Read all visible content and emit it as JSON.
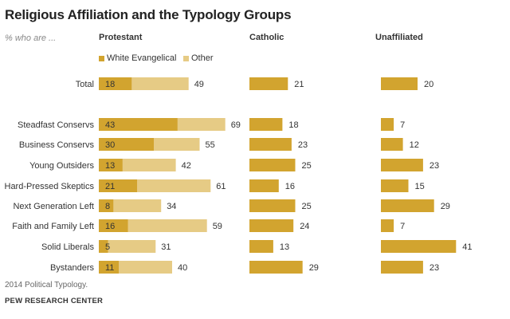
{
  "chart_data": {
    "type": "bar",
    "title": "Religious Affiliation and the Typology Groups",
    "subtitle": "% who are ...",
    "categories": [
      "Total",
      "Steadfast Conservs",
      "Business Conservs",
      "Young Outsiders",
      "Hard-Pressed Skeptics",
      "Next Generation Left",
      "Faith and Family Left",
      "Solid Liberals",
      "Bystanders"
    ],
    "panels": {
      "protestant": {
        "label": "Protestant",
        "stacked": true,
        "series": [
          {
            "name": "White Evangelical",
            "values": [
              18,
              43,
              30,
              13,
              21,
              8,
              16,
              5,
              11
            ]
          },
          {
            "name": "Other",
            "values": [
              31,
              26,
              25,
              29,
              40,
              26,
              43,
              26,
              29
            ]
          }
        ],
        "totals": [
          49,
          69,
          55,
          42,
          61,
          34,
          59,
          31,
          40
        ]
      },
      "catholic": {
        "label": "Catholic",
        "values": [
          21,
          18,
          23,
          25,
          16,
          25,
          24,
          13,
          29
        ]
      },
      "unaffiliated": {
        "label": "Unaffiliated",
        "values": [
          20,
          7,
          12,
          23,
          15,
          29,
          7,
          41,
          23
        ]
      }
    },
    "colors": {
      "dark": "#d2a42f",
      "light": "#e6cb85"
    }
  },
  "labels": {
    "title": "Religious Affiliation and the Typology Groups",
    "subtitle": "% who are ...",
    "protestant": "Protestant",
    "catholic": "Catholic",
    "unaffiliated": "Unaffiliated",
    "legend_evangelical": "White Evangelical",
    "legend_other": "Other"
  },
  "footer": {
    "note": "2014 Political Typology.",
    "source": "PEW RESEARCH CENTER"
  }
}
